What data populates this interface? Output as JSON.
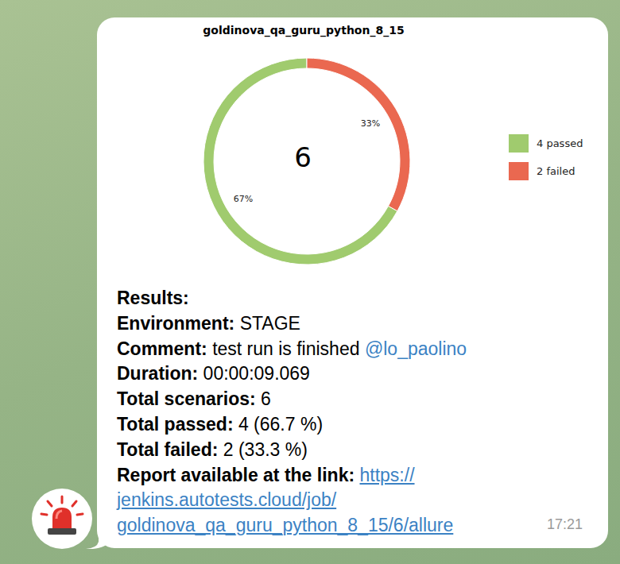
{
  "chart_data": {
    "type": "pie",
    "title": "goldinova_qa_guru_python_8_15",
    "categories": [
      "4 passed",
      "2 failed"
    ],
    "values": [
      67,
      33
    ],
    "value_labels": [
      "67%",
      "33%"
    ],
    "colors": [
      "#a0cb6e",
      "#ea6850"
    ],
    "data_labels": true,
    "legend": "right",
    "annotations": [
      "6"
    ]
  },
  "message": {
    "heading": "Results:",
    "fields": [
      {
        "label": "Environment:",
        "value": "STAGE"
      },
      {
        "label": "Comment:",
        "value": "test run is finished",
        "mention": "@lo_paolino"
      },
      {
        "label": "Duration:",
        "value": "00:00:09.069"
      },
      {
        "label": "Total scenarios:",
        "value": "6"
      },
      {
        "label": "Total passed:",
        "value": "4 (66.7 %)"
      },
      {
        "label": "Total failed:",
        "value": "2 (33.3 %)"
      }
    ],
    "link_label": "Report available at the link:",
    "link_lines": [
      "https://",
      "jenkins.autotests.cloud/job/",
      "goldinova_qa_guru_python_8_15/6/allure"
    ],
    "time": "17:21"
  }
}
